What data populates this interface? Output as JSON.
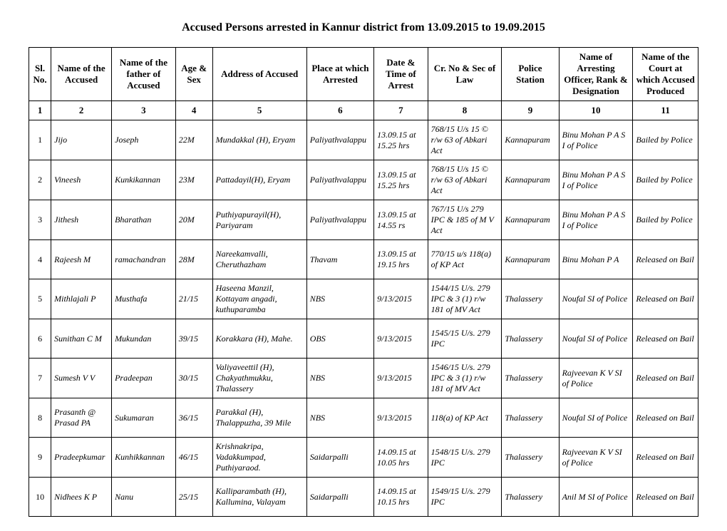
{
  "title": "Accused Persons arrested in    Kannur  district from   13.09.2015 to 19.09.2015",
  "columns": [
    "Sl. No.",
    "Name of the Accused",
    "Name of the father of Accused",
    "Age & Sex",
    "Address of Accused",
    "Place at which Arrested",
    "Date & Time of Arrest",
    "Cr. No & Sec of Law",
    "Police Station",
    "Name of Arresting Officer, Rank & Designation",
    "Name of the Court at which Accused Produced"
  ],
  "col_numbers": [
    "1",
    "2",
    "3",
    "4",
    "5",
    "6",
    "7",
    "8",
    "9",
    "10",
    "11"
  ],
  "rows": [
    [
      "1",
      "Jijo",
      "Joseph",
      "22M",
      "Mundakkal (H), Eryam",
      "Paliyathvalappu",
      "13.09.15 at 15.25 hrs",
      "768/15 U/s 15 © r/w 63 of Abkari Act",
      "Kannapuram",
      "Binu Mohan P A S I of  Police",
      "Bailed by Police"
    ],
    [
      "2",
      "Vineesh",
      "Kunkikannan",
      "23M",
      "Pattadayil(H), Eryam",
      "Paliyathvalappu",
      "13.09.15 at 15.25 hrs",
      "768/15 U/s 15 © r/w 63 of Abkari Act",
      "Kannapuram",
      "Binu Mohan P A S I of  Police",
      "Bailed by Police"
    ],
    [
      "3",
      "Jithesh",
      "Bharathan",
      "20M",
      "Puthiyapurayil(H), Pariyaram",
      "Paliyathvalappu",
      "13.09.15 at 14.55 rs",
      "767/15 U/s  279 IPC & 185 of M V Act",
      "Kannapuram",
      "Binu Mohan P A S I of  Police",
      "Bailed by Police"
    ],
    [
      "4",
      "Rajeesh M",
      "ramachandran",
      "28M",
      "Nareekamvalli, Cheruthazham",
      "Thavam",
      "13.09.15 at 19.15 hrs",
      "770/15 u/s 118(a) of KP Act",
      "Kannapuram",
      "Binu Mohan P A",
      "Released on Bail"
    ],
    [
      "5",
      "Mithlajali P",
      "Musthafa",
      "21/15",
      "Haseena Manzil, Kottayam angadi, kuthuparamba",
      "NBS",
      "9/13/2015",
      "1544/15 U/s. 279 IPC & 3 (1) r/w 181 of MV Act",
      "Thalassery",
      "Noufal SI of Police",
      "Released on Bail"
    ],
    [
      "6",
      "Sunithan C M",
      "Mukundan",
      "39/15",
      "Korakkara (H), Mahe.",
      "OBS",
      "9/13/2015",
      "1545/15 U/s. 279 IPC",
      "Thalassery",
      "Noufal SI of Police",
      "Released on Bail"
    ],
    [
      "7",
      "Sumesh V V",
      "Pradeepan",
      "30/15",
      "Valiyaveettil (H), Chakyathmukku, Thalassery",
      "NBS",
      "9/13/2015",
      "1546/15 U/s. 279 IPC & 3 (1) r/w 181 of MV Act",
      "Thalassery",
      "Rajveevan K V SI of Police",
      "Released on Bail"
    ],
    [
      "8",
      "Prasanth @ Prasad PA",
      "Sukumaran",
      "36/15",
      "Parakkal (H), Thalappuzha, 39 Mile",
      "NBS",
      "9/13/2015",
      "118(a) of KP Act",
      "Thalassery",
      "Noufal SI of Police",
      "Released on Bail"
    ],
    [
      "9",
      "Pradeepkumar",
      "Kunhikkannan",
      "46/15",
      "Krishnakripa, Vadakkumpad, Puthiyaraod.",
      "Saidarpalli",
      "14.09.15 at 10.05 hrs",
      "1548/15 U/s. 279 IPC",
      "Thalassery",
      "Rajveevan K V SI of Police",
      "Released on Bail"
    ],
    [
      "10",
      "Nidhees K P",
      "Nanu",
      "25/15",
      "Kalliparambath (H), Kallumina, Valayam",
      "Saidarpalli",
      "14.09.15 at 10.15 hrs",
      "1549/15 U/s. 279 IPC",
      "Thalassery",
      "Anil M SI of Police",
      "Released on Bail"
    ]
  ]
}
